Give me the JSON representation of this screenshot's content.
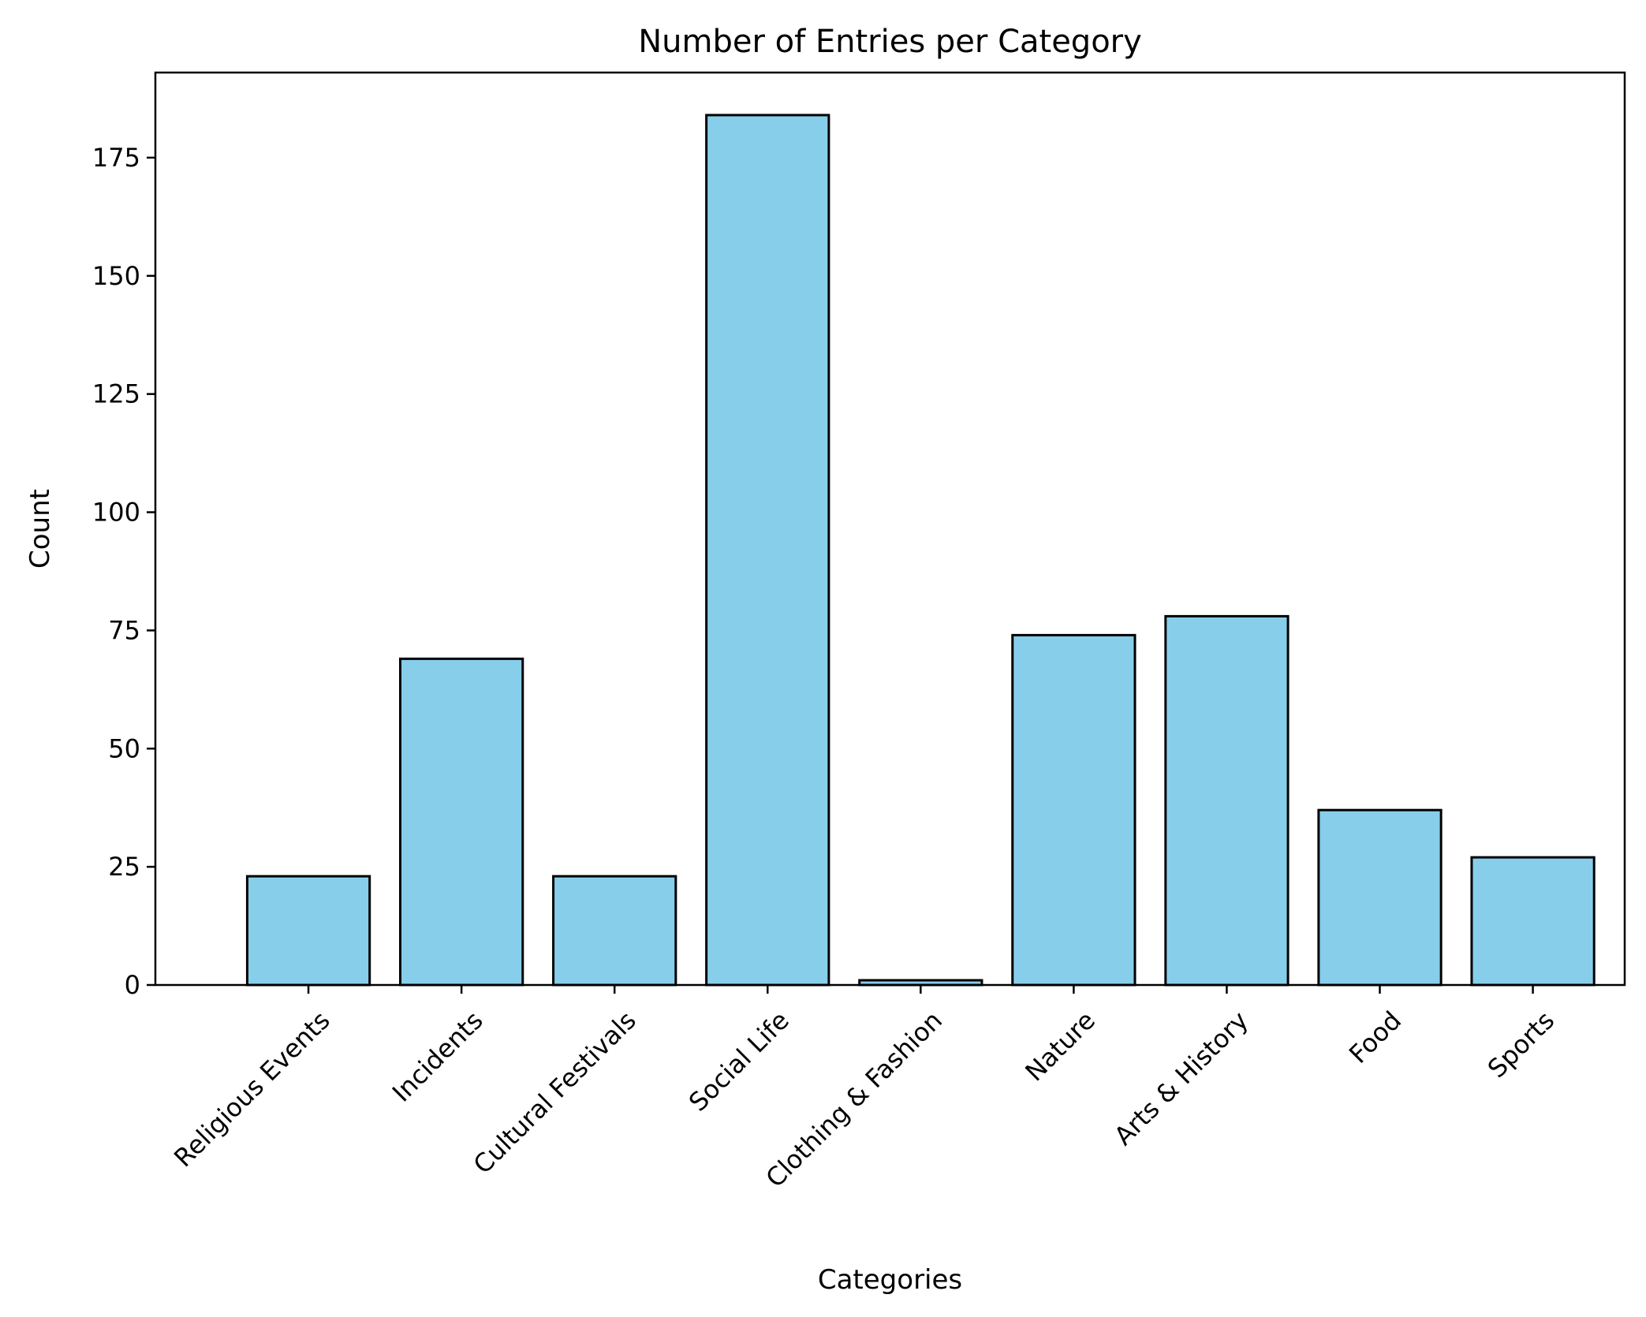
{
  "chart_data": {
    "type": "bar",
    "title": "Number of Entries per Category",
    "xlabel": "Categories",
    "ylabel": "Count",
    "categories": [
      "Religious Events",
      "Incidents",
      "Cultural Festivals",
      "Social Life",
      "Clothing & Fashion",
      "Nature",
      "Arts & History",
      "Food",
      "Sports"
    ],
    "values": [
      23,
      69,
      23,
      184,
      1,
      74,
      78,
      37,
      27
    ],
    "ylim": [
      0,
      193
    ],
    "yticks": [
      0,
      25,
      50,
      75,
      100,
      125,
      150,
      175
    ],
    "grid": false,
    "legend": "none",
    "colors": {
      "bar_fill": "#87CEEB",
      "bar_edge": "#000000",
      "axis": "#000000",
      "background": "#ffffff"
    }
  }
}
